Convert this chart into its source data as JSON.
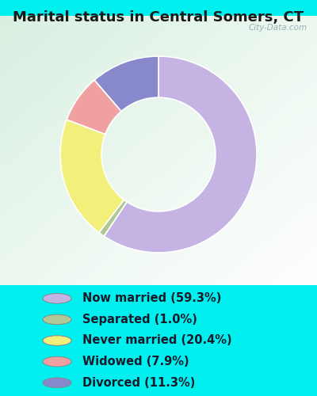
{
  "title": "Marital status in Central Somers, CT",
  "slices": [
    59.3,
    1.0,
    20.4,
    7.9,
    11.3
  ],
  "labels": [
    "Now married (59.3%)",
    "Separated (1.0%)",
    "Never married (20.4%)",
    "Widowed (7.9%)",
    "Divorced (11.3%)"
  ],
  "colors": [
    "#c5b4e3",
    "#b0c896",
    "#f2f07a",
    "#f0a0a0",
    "#8888cc"
  ],
  "outer_background": "#00f0f0",
  "chart_bg_left": "#c8ead8",
  "chart_bg_right": "#e8f4f0",
  "title_fontsize": 13,
  "legend_fontsize": 10.5,
  "watermark": "City-Data.com",
  "startangle": 90,
  "donut_width": 0.42
}
